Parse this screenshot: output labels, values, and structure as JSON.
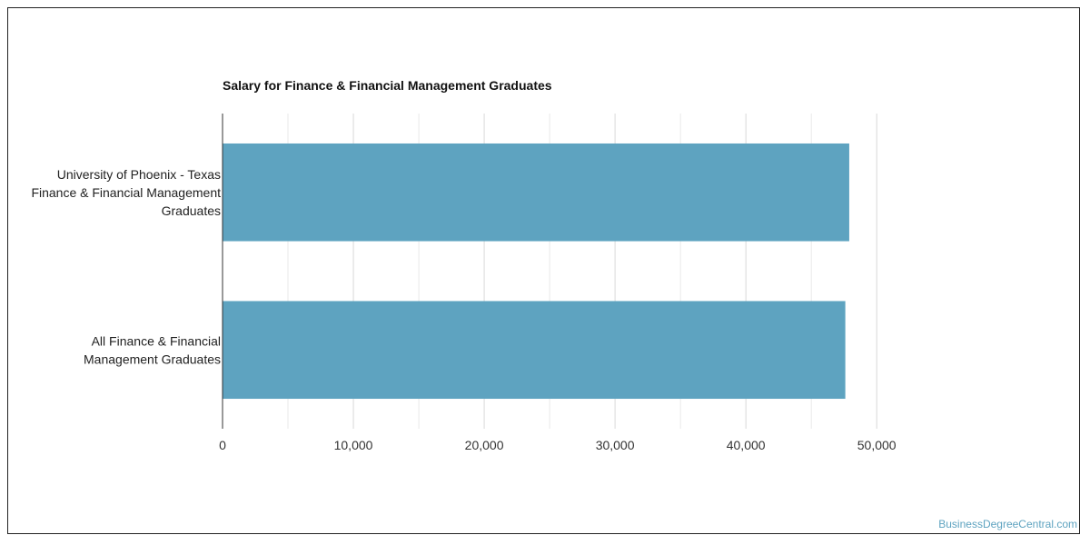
{
  "chart_data": {
    "type": "bar",
    "orientation": "horizontal",
    "title": "Salary for Finance & Financial Management Graduates",
    "xlabel": "",
    "ylabel": "",
    "categories": [
      [
        "University of Phoenix - Texas",
        "Finance & Financial Management",
        "Graduates"
      ],
      [
        "All Finance & Financial",
        "Management Graduates"
      ]
    ],
    "values": [
      47900,
      47600
    ],
    "xlim": [
      0,
      52000
    ],
    "xticks": [
      0,
      10000,
      20000,
      30000,
      40000,
      50000
    ],
    "xtick_labels": [
      "0",
      "10,000",
      "20,000",
      "30,000",
      "40,000",
      "50,000"
    ],
    "grid": "vertical",
    "bar_color": "#5ea3c0",
    "gridline_color": "#d9d9d9",
    "axis_color": "#333333"
  },
  "watermark": {
    "text": "BusinessDegreeCentral.com",
    "color": "#5ea3c0"
  }
}
